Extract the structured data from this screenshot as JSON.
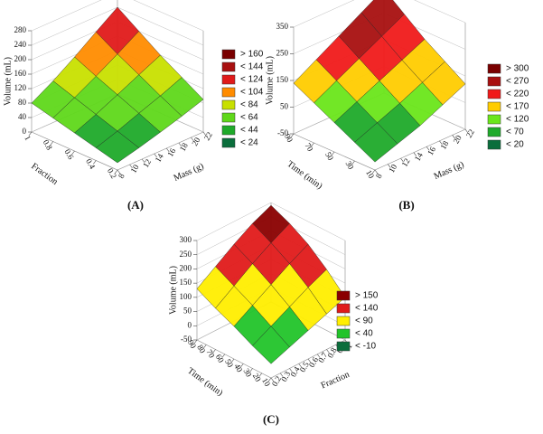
{
  "chart_data": [
    {
      "type": "surface",
      "panel_label": "(A)",
      "x_label": "Mass (g)",
      "y_label": "Fraction",
      "z_label": "Volume (mL)",
      "x": [
        8,
        11.5,
        15,
        18.5,
        22
      ],
      "y": [
        0.2,
        0.4,
        0.6,
        0.8,
        1.0
      ],
      "z": [
        [
          20,
          35,
          52,
          70,
          90
        ],
        [
          35,
          55,
          78,
          100,
          125
        ],
        [
          50,
          75,
          103,
          132,
          160
        ],
        [
          65,
          95,
          128,
          163,
          200
        ],
        [
          80,
          115,
          155,
          198,
          240
        ]
      ],
      "xlim": [
        8,
        22
      ],
      "ylim": [
        0.2,
        1.0
      ],
      "zlim": [
        0,
        280
      ],
      "xticks": [
        8,
        10,
        12,
        14,
        16,
        18,
        20,
        22
      ],
      "yticks": [
        0.2,
        0.4,
        0.6,
        0.8,
        1.0
      ],
      "zticks": [
        0,
        40,
        80,
        120,
        160,
        200,
        240,
        280
      ],
      "legend": [
        {
          "label": "> 160",
          "color": "#7a0000"
        },
        {
          "label": "< 144",
          "color": "#a81010"
        },
        {
          "label": "< 124",
          "color": "#e01a1a"
        },
        {
          "label": "< 104",
          "color": "#ff8c00"
        },
        {
          "label": "< 84",
          "color": "#c8e000"
        },
        {
          "label": "< 64",
          "color": "#5fd81a"
        },
        {
          "label": "< 44",
          "color": "#1faa2a"
        },
        {
          "label": "< 24",
          "color": "#0b6e3c"
        }
      ]
    },
    {
      "type": "surface",
      "panel_label": "(B)",
      "x_label": "Mass (g)",
      "y_label": "Time (min)",
      "z_label": "Volume (mL)",
      "x": [
        8,
        11.5,
        15,
        18.5,
        22
      ],
      "y": [
        10,
        30,
        50,
        70,
        90
      ],
      "z": [
        [
          -20,
          10,
          40,
          80,
          120
        ],
        [
          20,
          55,
          90,
          130,
          170
        ],
        [
          60,
          100,
          140,
          180,
          220
        ],
        [
          100,
          145,
          190,
          235,
          280
        ],
        [
          140,
          190,
          240,
          290,
          340
        ]
      ],
      "xlim": [
        8,
        22
      ],
      "ylim": [
        10,
        90
      ],
      "zlim": [
        -50,
        350
      ],
      "xticks": [
        8,
        10,
        12,
        14,
        16,
        18,
        20,
        22
      ],
      "yticks": [
        10,
        30,
        50,
        70,
        90
      ],
      "zticks": [
        -50,
        50,
        150,
        250,
        350
      ],
      "legend": [
        {
          "label": "> 300",
          "color": "#7a0000"
        },
        {
          "label": "< 270",
          "color": "#a81010"
        },
        {
          "label": "< 220",
          "color": "#f01a1a"
        },
        {
          "label": "< 170",
          "color": "#ffcc00"
        },
        {
          "label": "< 120",
          "color": "#6ae61a"
        },
        {
          "label": "< 70",
          "color": "#1faa2a"
        },
        {
          "label": "< 20",
          "color": "#0b6e3c"
        }
      ]
    },
    {
      "type": "surface",
      "panel_label": "(C)",
      "x_label": "Fraction",
      "y_label": "Time (min)",
      "z_label": "Volume (mL)",
      "x": [
        0.2,
        0.4,
        0.6,
        0.8,
        1.0
      ],
      "y": [
        10,
        30,
        50,
        70,
        90
      ],
      "z": [
        [
          0,
          25,
          50,
          75,
          100
        ],
        [
          30,
          65,
          100,
          135,
          165
        ],
        [
          65,
          105,
          145,
          185,
          220
        ],
        [
          95,
          140,
          185,
          225,
          260
        ],
        [
          130,
          175,
          220,
          260,
          290
        ]
      ],
      "xlim": [
        0.2,
        1.0
      ],
      "ylim": [
        10,
        90
      ],
      "zlim": [
        -50,
        300
      ],
      "xticks": [
        0.2,
        0.3,
        0.4,
        0.5,
        0.6,
        0.7,
        0.8,
        0.9,
        1.0
      ],
      "yticks": [
        10,
        20,
        30,
        40,
        50,
        60,
        70,
        80,
        90
      ],
      "zticks": [
        -50,
        0,
        50,
        100,
        150,
        200,
        250,
        300
      ],
      "legend": [
        {
          "label": "> 150",
          "color": "#8a0000"
        },
        {
          "label": "< 140",
          "color": "#e01a1a"
        },
        {
          "label": "< 90",
          "color": "#ffee00"
        },
        {
          "label": "< 40",
          "color": "#22c42a"
        },
        {
          "label": "< -10",
          "color": "#0b6e3c"
        }
      ]
    }
  ]
}
